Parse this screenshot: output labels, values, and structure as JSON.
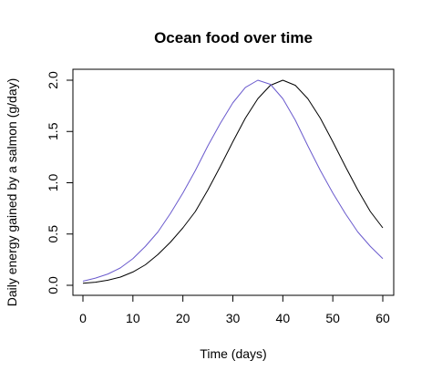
{
  "chart_data": {
    "type": "line",
    "title": "Ocean food over time",
    "xlabel": "Time (days)",
    "ylabel": "Daily energy gained by a salmon (g/day)",
    "xlim": [
      0,
      60
    ],
    "ylim": [
      0,
      2.0
    ],
    "x_ticks": [
      0,
      10,
      20,
      30,
      40,
      50,
      60
    ],
    "x_tick_labels": [
      "0",
      "10",
      "20",
      "30",
      "40",
      "50",
      "60"
    ],
    "y_ticks": [
      0,
      0.5,
      1.0,
      1.5,
      2.0
    ],
    "y_tick_labels": [
      "0.0",
      "0.5",
      "1.0",
      "1.5",
      "2.0"
    ],
    "grid": false,
    "legend": "none",
    "x": [
      0,
      2.5,
      5,
      7.5,
      10,
      12.5,
      15,
      17.5,
      20,
      22.5,
      25,
      27.5,
      30,
      32.5,
      35,
      37.5,
      40,
      42.5,
      45,
      47.5,
      50,
      52.5,
      55,
      57.5,
      60
    ],
    "series": [
      {
        "color": "#000000",
        "values": [
          0.02,
          0.03,
          0.05,
          0.08,
          0.13,
          0.2,
          0.3,
          0.42,
          0.56,
          0.72,
          0.93,
          1.16,
          1.4,
          1.63,
          1.82,
          1.95,
          2.0,
          1.95,
          1.82,
          1.63,
          1.4,
          1.16,
          0.93,
          0.72,
          0.56
        ]
      },
      {
        "color": "#6a5acd",
        "values": [
          0.04,
          0.07,
          0.11,
          0.17,
          0.26,
          0.38,
          0.52,
          0.7,
          0.9,
          1.12,
          1.36,
          1.58,
          1.78,
          1.93,
          2.0,
          1.96,
          1.82,
          1.61,
          1.36,
          1.12,
          0.9,
          0.7,
          0.52,
          0.38,
          0.26
        ]
      }
    ]
  }
}
